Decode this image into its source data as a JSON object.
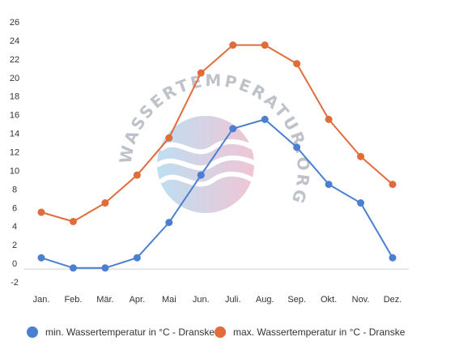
{
  "chart_data": {
    "type": "line",
    "categories": [
      "Jan.",
      "Feb.",
      "Mär.",
      "Apr.",
      "Mai",
      "Jun.",
      "Juli.",
      "Aug.",
      "Sep.",
      "Okt.",
      "Nov.",
      "Dez."
    ],
    "series": [
      {
        "name": "min. Wassertemperatur in °C - Dranske",
        "values": [
          0.6,
          -0.5,
          -0.5,
          0.6,
          4.4,
          9.5,
          14.5,
          15.5,
          12.5,
          8.5,
          6.5,
          0.6
        ],
        "color": "#4a7fd1"
      },
      {
        "name": "max. Wassertemperatur in °C - Dranske",
        "values": [
          5.5,
          4.5,
          6.5,
          9.5,
          13.5,
          20.5,
          23.5,
          23.5,
          21.5,
          15.5,
          11.5,
          8.5
        ],
        "color": "#e06c3b"
      }
    ],
    "yticks": [
      -2,
      0,
      2,
      4,
      6,
      8,
      10,
      12,
      14,
      16,
      18,
      20,
      22,
      24,
      26
    ],
    "ylim": [
      -2,
      26
    ],
    "grid": false,
    "legend": "bottom"
  },
  "watermark": {
    "text": "WASSERTEMPERATUR.ORG"
  }
}
